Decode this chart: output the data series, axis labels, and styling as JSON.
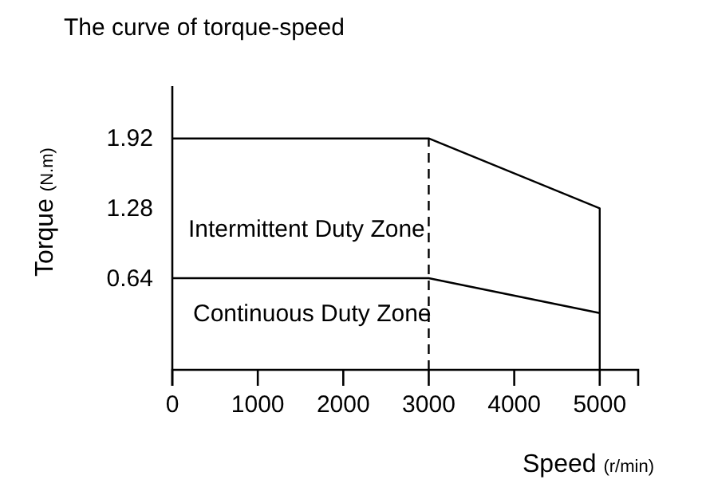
{
  "chart_data": {
    "type": "line",
    "title": "The curve of torque-speed",
    "xlabel": "Speed (r/min)",
    "ylabel": "Torque (N.m)",
    "xlim": [
      0,
      5450
    ],
    "xticks": [
      0,
      1000,
      2000,
      3000,
      4000,
      5000
    ],
    "ylim": [
      -0.2,
      2.4
    ],
    "yticks": [
      0.64,
      1.28,
      1.92
    ],
    "series": [
      {
        "color": "#000000",
        "x": [
          0,
          3000,
          5000,
          5000
        ],
        "values": [
          1.92,
          1.92,
          1.28,
          -0.2
        ]
      },
      {
        "color": "#000000",
        "x": [
          0,
          3000,
          5000
        ],
        "values": [
          0.64,
          0.64,
          0.32
        ]
      }
    ],
    "ref_lines": [
      {
        "axis": "x",
        "value": 3000,
        "color": "#000000",
        "line_style": "dashed"
      }
    ],
    "annotations": [
      "Intermittent Duty Zone",
      "Continuous Duty Zone"
    ],
    "marker": "none",
    "line_style": "solid"
  }
}
